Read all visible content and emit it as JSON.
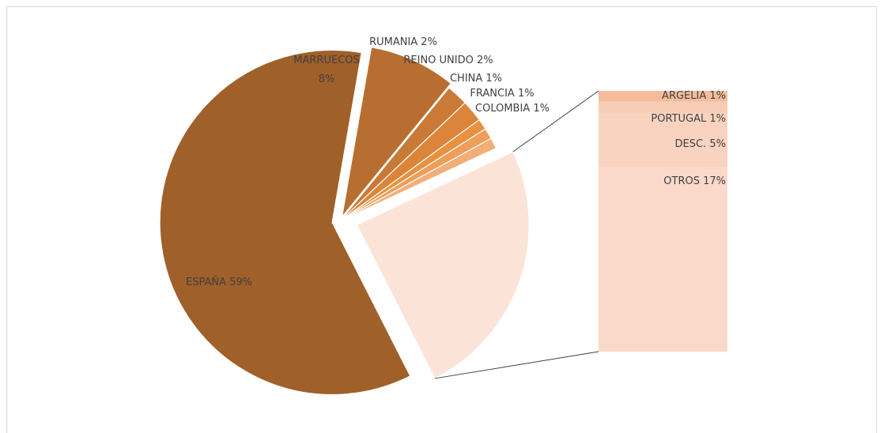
{
  "chart_data": {
    "type": "pie",
    "subtype": "bar-of-pie",
    "slices": [
      {
        "label": "ESPAÑA",
        "value": 59,
        "text": "ESPAÑA 59%",
        "color": "#A0602A"
      },
      {
        "label": "MARRUECOS",
        "value": 8,
        "text": "MARRUECOS 8%",
        "color": "#B86E30"
      },
      {
        "label": "RUMANIA",
        "value": 2,
        "text": "RUMANIA 2%",
        "color": "#C97A36"
      },
      {
        "label": "REINO UNIDO",
        "value": 2,
        "text": "REINO UNIDO 2%",
        "color": "#DB853A"
      },
      {
        "label": "CHINA",
        "value": 1,
        "text": "CHINA 1%",
        "color": "#E8913F"
      },
      {
        "label": "FRANCIA",
        "value": 1,
        "text": "FRANCIA 1%",
        "color": "#EE9E58"
      },
      {
        "label": "COLOMBIA",
        "value": 1,
        "text": "COLOMBIA 1%",
        "color": "#F2AE77"
      }
    ],
    "other_slice_color": "#FBE3D8",
    "bar_segments": [
      {
        "label": "ARGELIA",
        "value": 1,
        "text": "ARGELIA 1%",
        "color": "#F5BC9C"
      },
      {
        "label": "PORTUGAL",
        "value": 1,
        "text": "PORTUGAL 1%",
        "color": "#F8CDB5"
      },
      {
        "label": "DESC.",
        "value": 5,
        "text": "DESC. 5%",
        "color": "#F9D3C0"
      },
      {
        "label": "OTROS",
        "value": 17,
        "text": "OTROS 17%",
        "color": "#FAD9CA"
      }
    ]
  }
}
